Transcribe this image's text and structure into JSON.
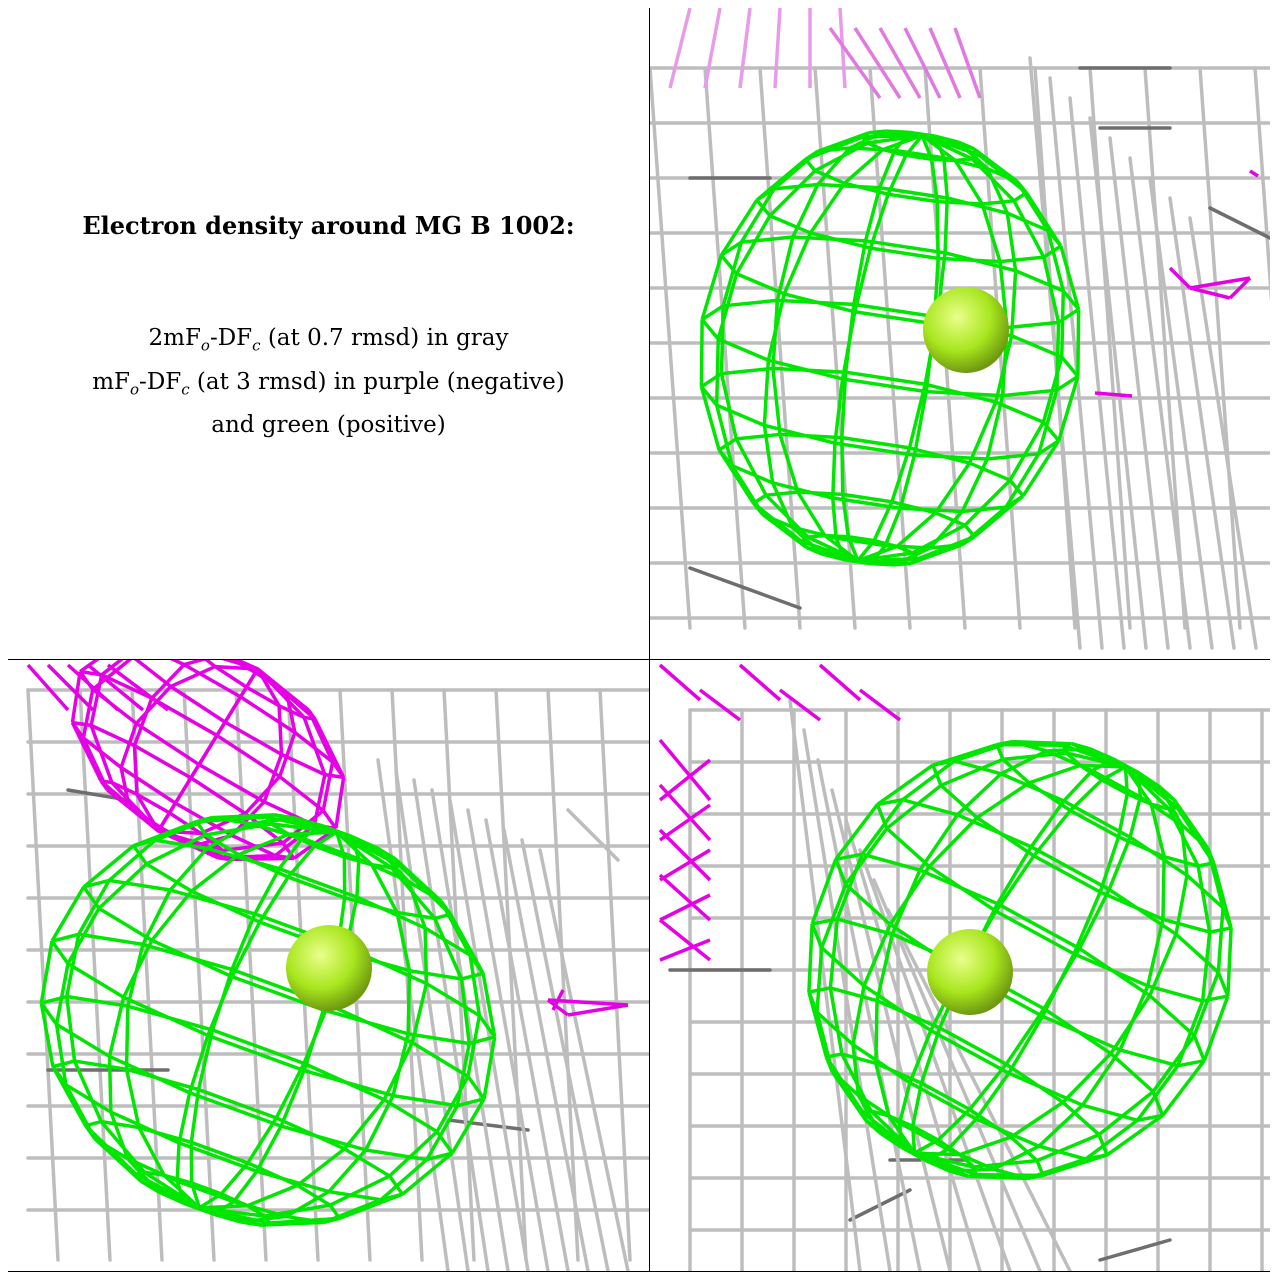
{
  "caption": {
    "title": "Electron density around MG B 1002:",
    "line1_main": "2mF",
    "line1_sub_o": "o",
    "line1_mid": "-DF",
    "line1_sub_c": "c",
    "line1_tail": " (at 0.7 rmsd) in gray",
    "line2_main": "mF",
    "line2_sub_o": "o",
    "line2_mid": "-DF",
    "line2_sub_c": "c",
    "line2_tail": " (at 3 rmsd) in purple (negative)",
    "line3": "and green (positive)"
  },
  "colors": {
    "gray_mesh": "#b8b8b8",
    "dark_gray_mesh": "#6e6e6e",
    "green_mesh": "#00e600",
    "purple_mesh": "#e600e6",
    "light_purple_mesh": "#e89be8",
    "magnesium_atom": "#a8e61e"
  },
  "panels": [
    {
      "id": "top-right",
      "view": "mesh-view-1"
    },
    {
      "id": "bottom-left",
      "view": "mesh-view-2"
    },
    {
      "id": "bottom-right",
      "view": "mesh-view-3"
    }
  ]
}
